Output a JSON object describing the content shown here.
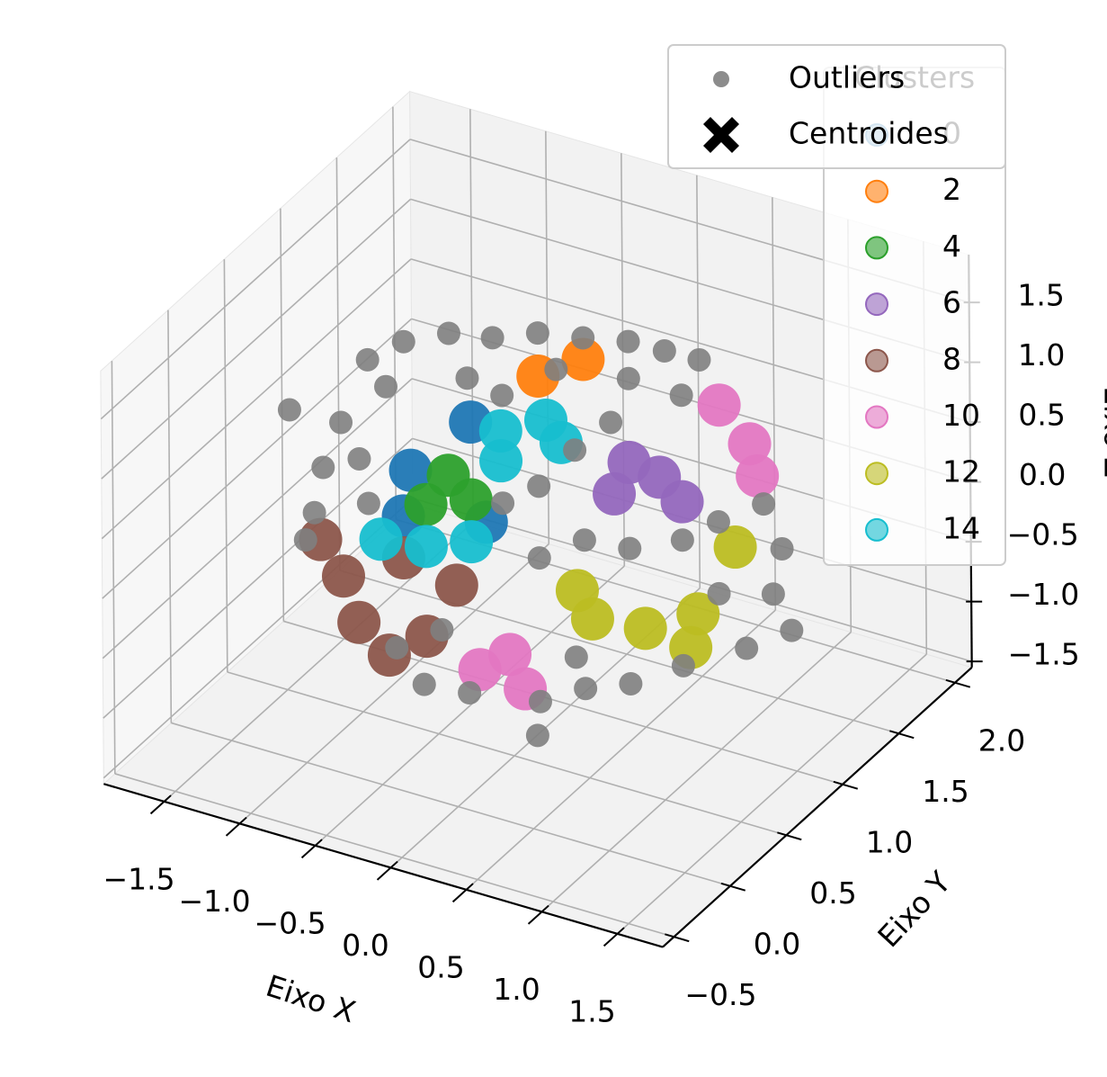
{
  "chart_data": {
    "type": "scatter3d",
    "x_label": "Eixo X",
    "y_label": "Eixo Y",
    "z_label": "Eixo Z",
    "xlim": [
      -1.9,
      1.8
    ],
    "ylim": [
      -0.6,
      2.15
    ],
    "zlim": [
      -1.55,
      1.9
    ],
    "xticks": [
      {
        "value": -1.5,
        "label": "−1.5"
      },
      {
        "value": -1,
        "label": "−1.0"
      },
      {
        "value": -0.5,
        "label": "−0.5"
      },
      {
        "value": 0,
        "label": "0.0"
      },
      0.5,
      {
        "value": 1,
        "label": "1.0"
      },
      1.5
    ],
    "yticks": [
      {
        "value": -0.5,
        "label": "−0.5"
      },
      {
        "value": 0,
        "label": "0.0"
      },
      0.5,
      {
        "value": 1,
        "label": "1.0"
      },
      1.5,
      {
        "value": 2,
        "label": "2.0"
      }
    ],
    "zticks": [
      {
        "value": -1.5,
        "label": "−1.5"
      },
      {
        "value": -1,
        "label": "−1.0"
      },
      {
        "value": -0.5,
        "label": "−0.5"
      },
      {
        "value": 0,
        "label": "0.0"
      },
      0.5,
      {
        "value": 1,
        "label": "1.0"
      },
      1.5
    ],
    "grid": true,
    "legend_title": "Clusters",
    "series": [
      {
        "name": "0",
        "color": "#1f77b4",
        "x": [
          -0.9,
          -0.95,
          -0.5,
          -0.4
        ],
        "y": [
          0.8,
          0.8,
          0.8,
          0.8
        ],
        "z": [
          0.25,
          -0.15,
          0.8,
          0.0
        ]
      },
      {
        "name": "2",
        "color": "#ff7f0e",
        "x": [
          -0.05,
          0.25
        ],
        "y": [
          0.8,
          0.8
        ],
        "z": [
          1.35,
          1.6
        ]
      },
      {
        "name": "4",
        "color": "#2ca02c",
        "x": [
          -0.65,
          -0.5,
          -0.8
        ],
        "y": [
          0.8,
          0.8,
          0.8
        ],
        "z": [
          0.3,
          0.15,
          0.0
        ]
      },
      {
        "name": "6",
        "color": "#9467bd",
        "x": [
          0.45,
          0.75,
          0.9,
          0.55
        ],
        "y": [
          0.8,
          0.8,
          0.8,
          0.8
        ],
        "z": [
          0.55,
          0.8,
          0.65,
          0.85
        ]
      },
      {
        "name": "8",
        "color": "#8c564b",
        "x": [
          -1.35,
          -0.95,
          -0.6,
          -1.25,
          -0.8,
          -1.05,
          -1.5
        ],
        "y": [
          0.8,
          0.8,
          0.8,
          0.8,
          0.8,
          0.8,
          0.8
        ],
        "z": [
          -0.8,
          -0.5,
          -0.6,
          -1.15,
          -1.1,
          -1.35,
          -0.55
        ]
      },
      {
        "name": "10",
        "color": "#e377c2",
        "x": [
          1.15,
          1.35,
          1.4,
          -0.25,
          -0.15,
          -0.45
        ],
        "y": [
          0.8,
          0.8,
          0.8,
          0.8,
          0.8,
          0.8
        ],
        "z": [
          1.55,
          1.3,
          1.05,
          -1.05,
          -1.3,
          -1.25
        ]
      },
      {
        "name": "12",
        "color": "#bcbd22",
        "x": [
          0.3,
          0.65,
          1.0,
          1.25,
          0.2,
          0.95
        ],
        "y": [
          0.8,
          0.8,
          0.8,
          0.8,
          0.8,
          0.8
        ],
        "z": [
          -0.55,
          -0.5,
          -0.25,
          0.4,
          -0.35,
          -0.55
        ]
      },
      {
        "name": "14",
        "color": "#17becf",
        "x": [
          -0.3,
          0.0,
          -0.3,
          0.1,
          -1.1,
          -0.8,
          -0.5
        ],
        "y": [
          0.8,
          0.8,
          0.8,
          0.8,
          0.8,
          0.8,
          0.8
        ],
        "z": [
          0.8,
          1.0,
          0.55,
          0.85,
          -0.4,
          -0.35,
          -0.2
        ]
      }
    ],
    "outliers": {
      "name": "Outliers",
      "color": "#808080",
      "x": [
        -1.18,
        -0.94,
        -0.64,
        -0.35,
        -0.05,
        0.25,
        0.55,
        0.79,
        1.02,
        -1.06,
        -0.52,
        0.07,
        0.55,
        0.9,
        -0.29,
        -1.36,
        -1.48,
        -1.54,
        -1.6,
        -1.24,
        -1.18,
        -0.29,
        -0.05,
        0.19,
        0.25,
        0.55,
        -0.05,
        0.43,
        1.14,
        1.44,
        1.56,
        1.5,
        1.32,
        1.62,
        0.9,
        1.14,
        -0.82,
        -0.52,
        -0.05,
        0.25,
        0.55,
        0.9,
        -1.0,
        -0.7,
        0.19,
        -1.7,
        -0.07
      ],
      "y": [
        0.8,
        0.8,
        0.8,
        0.8,
        0.8,
        0.8,
        0.8,
        0.8,
        0.8,
        0.8,
        0.8,
        0.8,
        0.8,
        0.8,
        0.8,
        0.8,
        0.8,
        0.8,
        0.8,
        0.8,
        0.8,
        0.8,
        0.8,
        0.8,
        0.8,
        0.8,
        0.8,
        0.8,
        0.8,
        0.8,
        0.8,
        0.8,
        0.8,
        0.8,
        0.8,
        0.8,
        0.8,
        0.8,
        0.8,
        0.8,
        0.8,
        0.8,
        0.8,
        0.8,
        0.8,
        0.8,
        0.8
      ],
      "z": [
        1.07,
        1.31,
        1.49,
        1.56,
        1.71,
        1.78,
        1.86,
        1.87,
        1.88,
        0.89,
        1.16,
        1.45,
        1.55,
        1.54,
        1.1,
        0.48,
        0.06,
        -0.34,
        -0.59,
        0.22,
        -0.13,
        0.2,
        0.43,
        0.82,
        0.09,
        0.13,
        -0.17,
        1.14,
        0.57,
        0.83,
        0.5,
        0.1,
        -0.42,
        -0.16,
        0.33,
        -0.03,
        -1.51,
        -1.47,
        -1.37,
        -1.15,
        -1.0,
        -0.72,
        -1.27,
        -1.01,
        -0.91,
        0.46,
        -1.66
      ]
    },
    "centroids": {
      "name": "Centroides",
      "color": "#000000"
    }
  }
}
